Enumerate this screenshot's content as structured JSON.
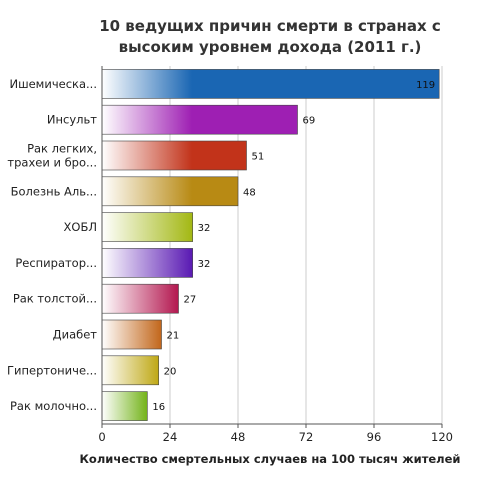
{
  "chart_data": {
    "type": "bar",
    "orientation": "horizontal",
    "title": "10 ведущих причин смерти в странах с высоким уровнем дохода (2011 г.)",
    "title_lines": [
      "10 ведущих причин смерти в странах с",
      "высоким уровнем дохода (2011 г.)"
    ],
    "xlabel": "Количество смертельных случаев на 100 тысяч жителей",
    "ylabel": "",
    "xlim": [
      0,
      120
    ],
    "ticks": [
      0,
      24,
      48,
      72,
      96,
      120
    ],
    "grid": true,
    "legend": "none",
    "categories": [
      "Ишемическа...",
      "Инсульт",
      "Рак легких, трахеи и бро...",
      "Болезнь Аль...",
      "ХОБЛ",
      "Респиратор...",
      "Рак толстой...",
      "Диабет",
      "Гипертониче...",
      "Рак молочно..."
    ],
    "category_lines": [
      [
        "Ишемическа..."
      ],
      [
        "Инсульт"
      ],
      [
        "Рак легких,",
        "трахеи и бро..."
      ],
      [
        "Болезнь Аль..."
      ],
      [
        "ХОБЛ"
      ],
      [
        "Респиратор..."
      ],
      [
        "Рак толстой..."
      ],
      [
        "Диабет"
      ],
      [
        "Гипертониче..."
      ],
      [
        "Рак молочно..."
      ]
    ],
    "values": [
      119,
      69,
      51,
      48,
      32,
      32,
      27,
      21,
      20,
      16
    ],
    "colors": [
      "#1a66b3",
      "#9e1fb3",
      "#c2331a",
      "#b88a14",
      "#a3b814",
      "#5a1ab3",
      "#b3174f",
      "#c2661a",
      "#bfa814",
      "#73b319"
    ]
  }
}
